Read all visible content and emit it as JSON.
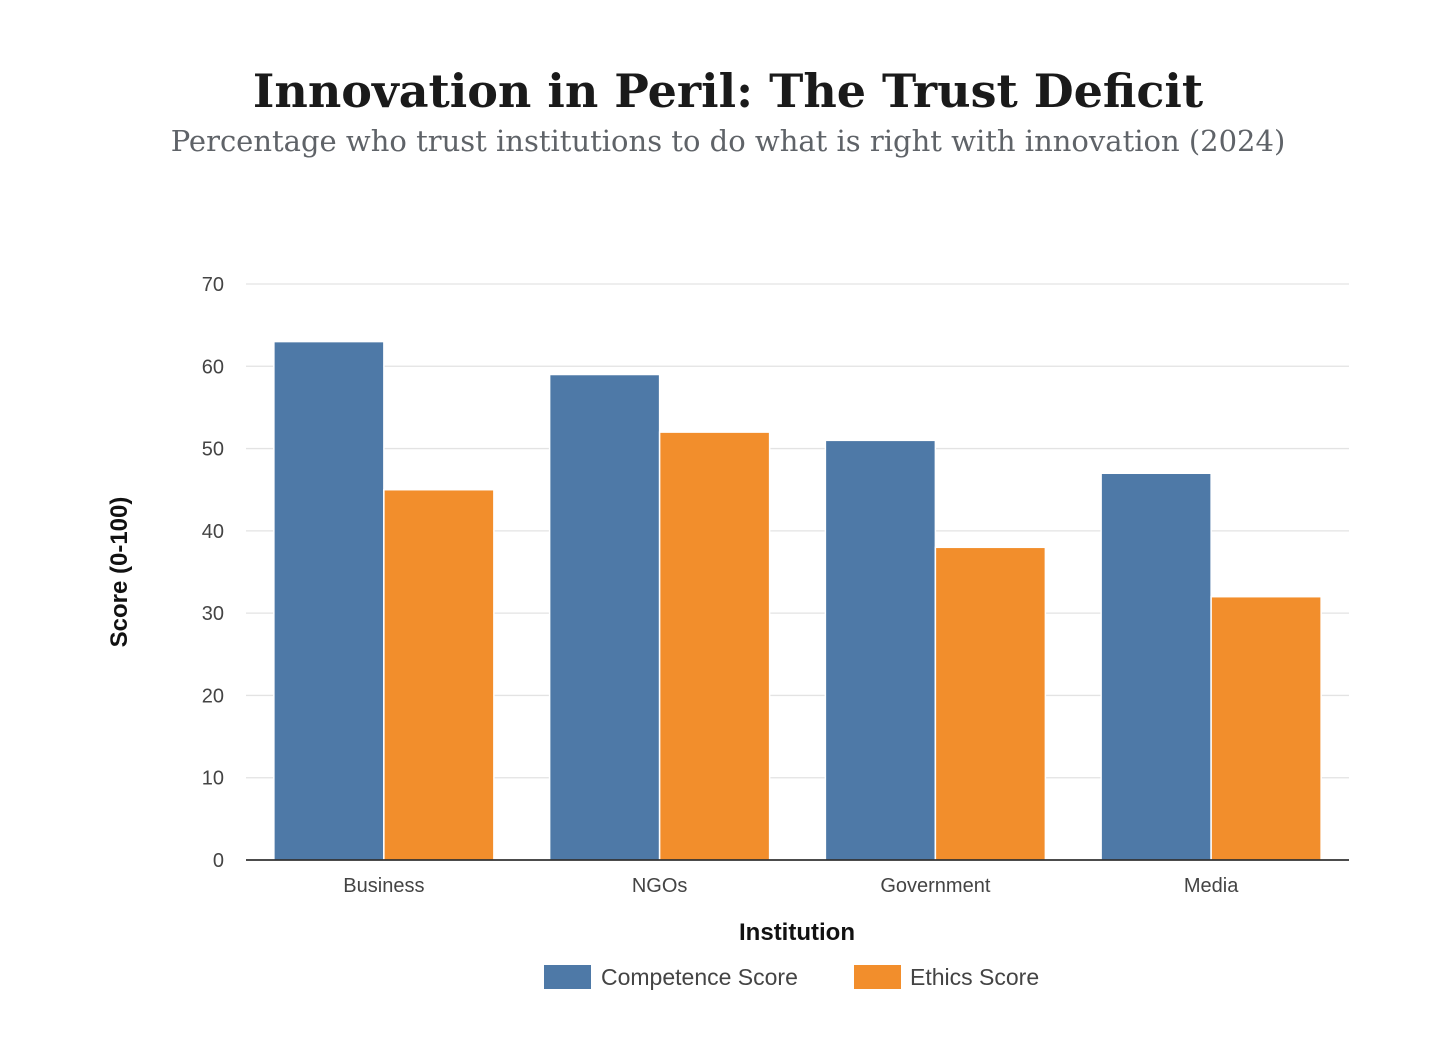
{
  "colors": {
    "competence": "#4e79a7",
    "ethics": "#f28e2c",
    "background": "#ffffff"
  },
  "chart_data": {
    "type": "bar",
    "title": "Innovation in Peril: The Trust Deficit",
    "subtitle": "Percentage who trust institutions to do what is right with innovation (2024)",
    "xlabel": "Institution",
    "ylabel": "Score (0-100)",
    "categories": [
      "Business",
      "NGOs",
      "Government",
      "Media"
    ],
    "series": [
      {
        "name": "Competence Score",
        "color": "#4e79a7",
        "values": [
          63,
          59,
          51,
          47
        ]
      },
      {
        "name": "Ethics Score",
        "color": "#f28e2c",
        "values": [
          45,
          52,
          38,
          32
        ]
      }
    ],
    "ylim": [
      0,
      70
    ],
    "yticks": [
      0,
      10,
      20,
      30,
      40,
      50,
      60,
      70
    ],
    "grid": true,
    "legend_position": "bottom-center"
  }
}
